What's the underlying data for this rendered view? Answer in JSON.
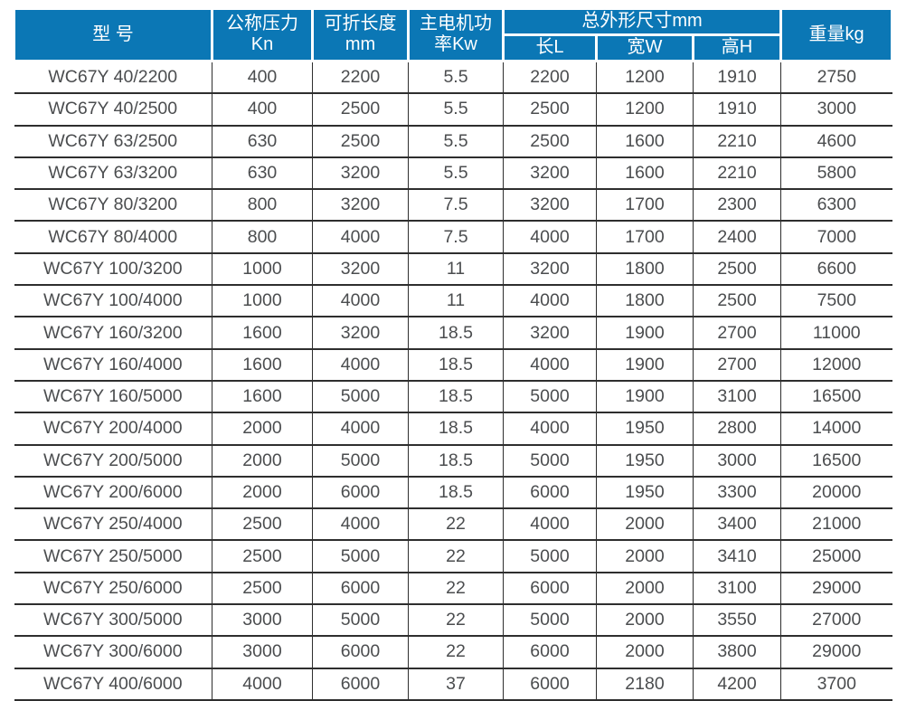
{
  "colors": {
    "header_bg": "#0b77b5",
    "header_text": "#ffffff",
    "body_text": "#4b4d4f",
    "grid_line": "#2e2e2e",
    "header_divider": "#ffffff"
  },
  "table": {
    "header": {
      "model": "型 号",
      "nominal_pressure": "公称压力\nKn",
      "fold_length": "可折长度\nmm",
      "motor_power": "主电机功\n率Kw",
      "overall_dimensions": "总外形尺寸mm",
      "dim_length": "长L",
      "dim_width": "宽W",
      "dim_height": "高H",
      "weight": "重量kg"
    },
    "column_keys": [
      "model",
      "nominal-pressure-kn",
      "fold-length-mm",
      "motor-power-kw",
      "length-l",
      "width-w",
      "height-h",
      "weight-kg"
    ],
    "rows": [
      [
        "WC67Y 40/2200",
        "400",
        "2200",
        "5.5",
        "2200",
        "1200",
        "1910",
        "2750"
      ],
      [
        "WC67Y 40/2500",
        "400",
        "2500",
        "5.5",
        "2500",
        "1200",
        "1910",
        "3000"
      ],
      [
        "WC67Y 63/2500",
        "630",
        "2500",
        "5.5",
        "2500",
        "1600",
        "2210",
        "4600"
      ],
      [
        "WC67Y 63/3200",
        "630",
        "3200",
        "5.5",
        "3200",
        "1600",
        "2210",
        "5800"
      ],
      [
        "WC67Y 80/3200",
        "800",
        "3200",
        "7.5",
        "3200",
        "1700",
        "2300",
        "6300"
      ],
      [
        "WC67Y 80/4000",
        "800",
        "4000",
        "7.5",
        "4000",
        "1700",
        "2400",
        "7000"
      ],
      [
        "WC67Y 100/3200",
        "1000",
        "3200",
        "11",
        "3200",
        "1800",
        "2500",
        "6600"
      ],
      [
        "WC67Y 100/4000",
        "1000",
        "4000",
        "11",
        "4000",
        "1800",
        "2500",
        "7500"
      ],
      [
        "WC67Y 160/3200",
        "1600",
        "3200",
        "18.5",
        "3200",
        "1900",
        "2700",
        "11000"
      ],
      [
        "WC67Y 160/4000",
        "1600",
        "4000",
        "18.5",
        "4000",
        "1900",
        "2700",
        "12000"
      ],
      [
        "WC67Y 160/5000",
        "1600",
        "5000",
        "18.5",
        "5000",
        "1900",
        "3100",
        "16500"
      ],
      [
        "WC67Y 200/4000",
        "2000",
        "4000",
        "18.5",
        "4000",
        "1950",
        "2800",
        "14000"
      ],
      [
        "WC67Y 200/5000",
        "2000",
        "5000",
        "18.5",
        "5000",
        "1950",
        "3000",
        "16500"
      ],
      [
        "WC67Y 200/6000",
        "2000",
        "6000",
        "18.5",
        "6000",
        "1950",
        "3300",
        "20000"
      ],
      [
        "WC67Y 250/4000",
        "2500",
        "4000",
        "22",
        "4000",
        "2000",
        "3400",
        "21000"
      ],
      [
        "WC67Y 250/5000",
        "2500",
        "5000",
        "22",
        "5000",
        "2000",
        "3410",
        "25000"
      ],
      [
        "WC67Y 250/6000",
        "2500",
        "6000",
        "22",
        "6000",
        "2000",
        "3100",
        "29000"
      ],
      [
        "WC67Y 300/5000",
        "3000",
        "5000",
        "22",
        "5000",
        "2000",
        "3550",
        "27000"
      ],
      [
        "WC67Y 300/6000",
        "3000",
        "6000",
        "22",
        "6000",
        "2000",
        "3800",
        "29000"
      ],
      [
        "WC67Y 400/6000",
        "4000",
        "6000",
        "37",
        "6000",
        "2180",
        "4200",
        "3700"
      ]
    ]
  }
}
